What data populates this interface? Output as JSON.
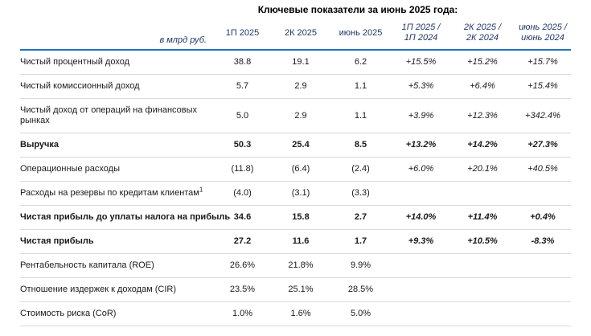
{
  "title": "Ключевые показатели за июнь 2025 года:",
  "colors": {
    "header_rule_blue": "#1f74bc",
    "header_text_navy": "#1f3864",
    "row_separator_gray": "#d9d9d9",
    "body_text": "#000000"
  },
  "table": {
    "unit_label": "в млрд руб.",
    "period_columns": [
      "1П 2025",
      "2К 2025",
      "июнь 2025"
    ],
    "ratio_columns": [
      {
        "line1": "1П 2025 /",
        "line2": "1П 2024"
      },
      {
        "line1": "2К 2025 /",
        "line2": "2К 2024"
      },
      {
        "line1": "июнь 2025 /",
        "line2": "июнь 2024"
      }
    ],
    "rows": [
      {
        "label": "Чистый процентный доход",
        "bold": false,
        "values": [
          "38.8",
          "19.1",
          "6.2",
          "+15.5%",
          "+15.2%",
          "+15.7%"
        ]
      },
      {
        "label": "Чистый комиссионный доход",
        "bold": false,
        "values": [
          "5.7",
          "2.9",
          "1.1",
          "+5.3%",
          "+6.4%",
          "+15.4%"
        ]
      },
      {
        "label": "Чистый доход от операций на финансовых\nрынках",
        "bold": false,
        "values": [
          "5.0",
          "2.9",
          "1.1",
          "+3.9%",
          "+12.3%",
          "+342.4%"
        ]
      },
      {
        "label": "Выручка",
        "bold": true,
        "values": [
          "50.3",
          "25.4",
          "8.5",
          "+13.2%",
          "+14.2%",
          "+27.3%"
        ]
      },
      {
        "label": "Операционные расходы",
        "bold": false,
        "values": [
          "(11.8)",
          "(6.4)",
          "(2.4)",
          "+6.0%",
          "+20.1%",
          "+40.5%"
        ]
      },
      {
        "label": "Расходы на резервы по кредитам клиентам",
        "sup": "1",
        "bold": false,
        "values": [
          "(4.0)",
          "(3.1)",
          "(3.3)",
          "",
          "",
          ""
        ]
      },
      {
        "label": "Чистая прибыль до уплаты налога на прибыль",
        "bold": true,
        "values": [
          "34.6",
          "15.8",
          "2.7",
          "+14.0%",
          "+11.4%",
          "+0.4%"
        ]
      },
      {
        "label": "Чистая прибыль",
        "bold": true,
        "values": [
          "27.2",
          "11.6",
          "1.7",
          "+9.3%",
          "+10.5%",
          "-8.3%"
        ]
      },
      {
        "label": "Рентабельность капитала (ROE)",
        "bold": false,
        "values": [
          "26.6%",
          "21.8%",
          "9.9%",
          "",
          "",
          ""
        ]
      },
      {
        "label": "Отношение издержек к доходам (CIR)",
        "bold": false,
        "values": [
          "23.5%",
          "25.1%",
          "28.5%",
          "",
          "",
          ""
        ]
      },
      {
        "label": "Стоимость риска (CoR)",
        "bold": false,
        "values": [
          "1.0%",
          "1.6%",
          "5.0%",
          "",
          "",
          ""
        ]
      }
    ]
  }
}
